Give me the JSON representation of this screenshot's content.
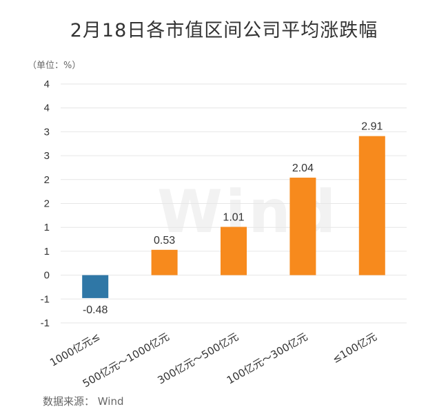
{
  "title": "2月18日各市值区间公司平均涨跌幅",
  "unit_label": "（单位：%）",
  "source_label": "数据来源：  Wind",
  "watermark": "Wind",
  "colors": {
    "positive": "#f78a1d",
    "negative": "#2f77a6",
    "grid": "#e6e6e6",
    "text": "#333333"
  },
  "chart_data": {
    "type": "bar",
    "title": "2月18日各市值区间公司平均涨跌幅",
    "xlabel": "",
    "ylabel": "",
    "categories": [
      "1000亿元≤",
      "500亿元～1000亿元",
      "300亿元～500亿元",
      "100亿元～300亿元",
      "≤100亿元"
    ],
    "values": [
      -0.48,
      0.53,
      1.01,
      2.04,
      2.91
    ],
    "data_labels": [
      "-0.48",
      "0.53",
      "1.01",
      "2.04",
      "2.91"
    ],
    "ylim": [
      -1,
      4
    ],
    "yticks": [
      -1,
      -0.5,
      0,
      0.5,
      1,
      1.5,
      2,
      2.5,
      3,
      3.5,
      4
    ],
    "ytick_labels": [
      "-1",
      "-1",
      "0",
      "1",
      "1",
      "2",
      "2",
      "3",
      "3",
      "4",
      "4"
    ],
    "grid": true,
    "legend": "none"
  }
}
